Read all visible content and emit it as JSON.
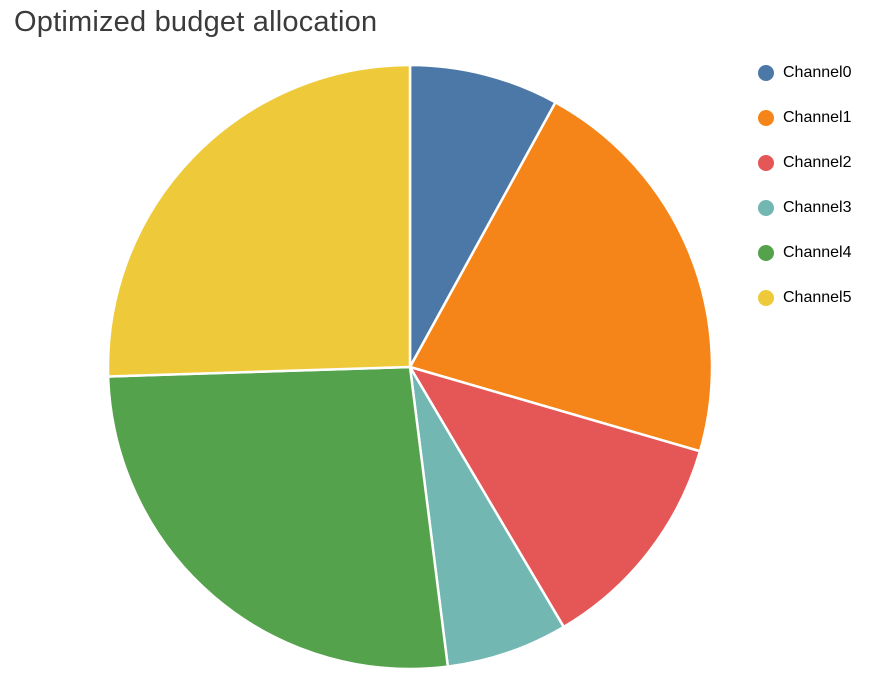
{
  "chart_data": {
    "type": "pie",
    "title": "Optimized budget allocation",
    "categories": [
      "Channel0",
      "Channel1",
      "Channel2",
      "Channel3",
      "Channel4",
      "Channel5"
    ],
    "values": [
      8.0,
      21.5,
      12.0,
      6.5,
      26.5,
      25.5
    ],
    "colors": [
      "#4c78a8",
      "#f58518",
      "#e45756",
      "#72b7b2",
      "#54a24b",
      "#eeca3b"
    ],
    "units": "percent",
    "legend_position": "right",
    "start_angle_deg": 0,
    "direction": "clockwise",
    "slice_separator_color": "#ffffff"
  }
}
